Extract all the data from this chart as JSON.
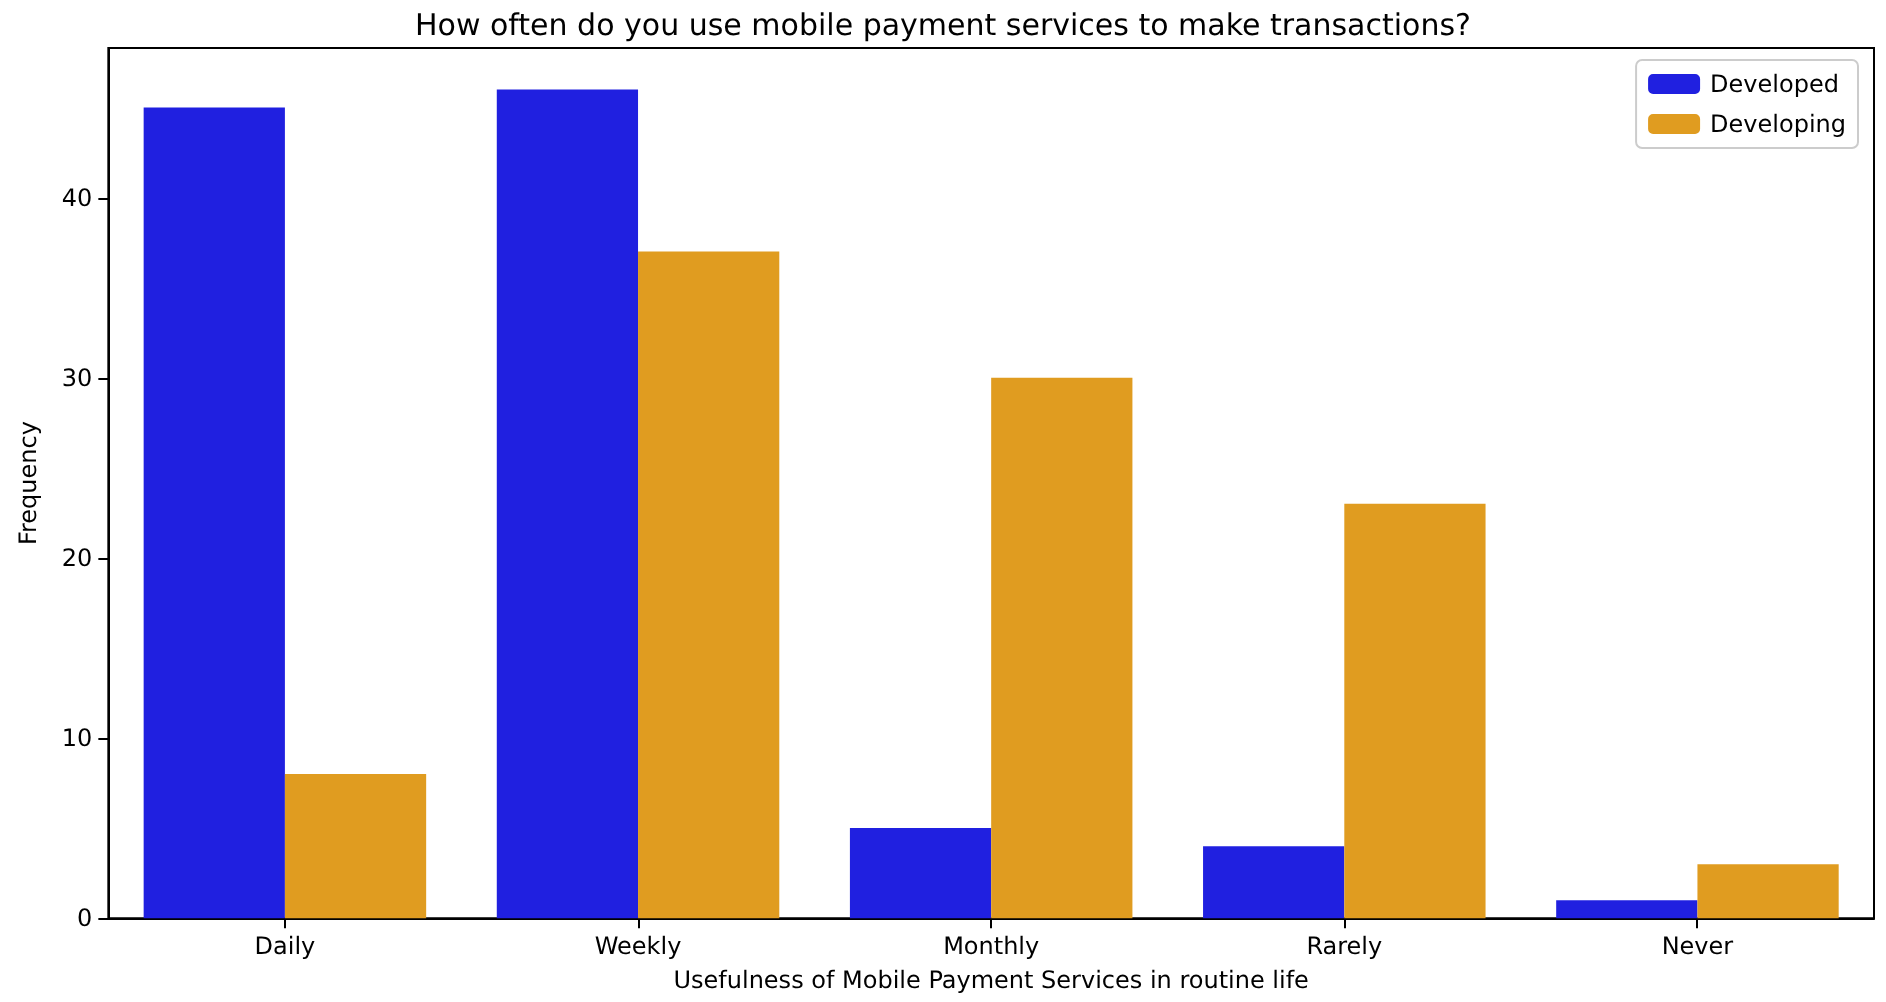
{
  "chart_data": {
    "type": "bar",
    "title": "How often do you use mobile payment services to make transactions?",
    "xlabel": "Usefulness of Mobile Payment Services in routine life",
    "ylabel": "Frequency",
    "categories": [
      "Daily",
      "Weekly",
      "Monthly",
      "Rarely",
      "Never"
    ],
    "series": [
      {
        "name": "Developed",
        "color": "#2020e0",
        "values": [
          45,
          46,
          5,
          4,
          1
        ]
      },
      {
        "name": "Developing",
        "color": "#e09c20",
        "values": [
          8,
          37,
          30,
          23,
          3
        ]
      }
    ],
    "ylim": [
      0,
      48.3
    ],
    "yticks": [
      0,
      10,
      20,
      30,
      40
    ],
    "grid": false,
    "legend": "top right"
  }
}
